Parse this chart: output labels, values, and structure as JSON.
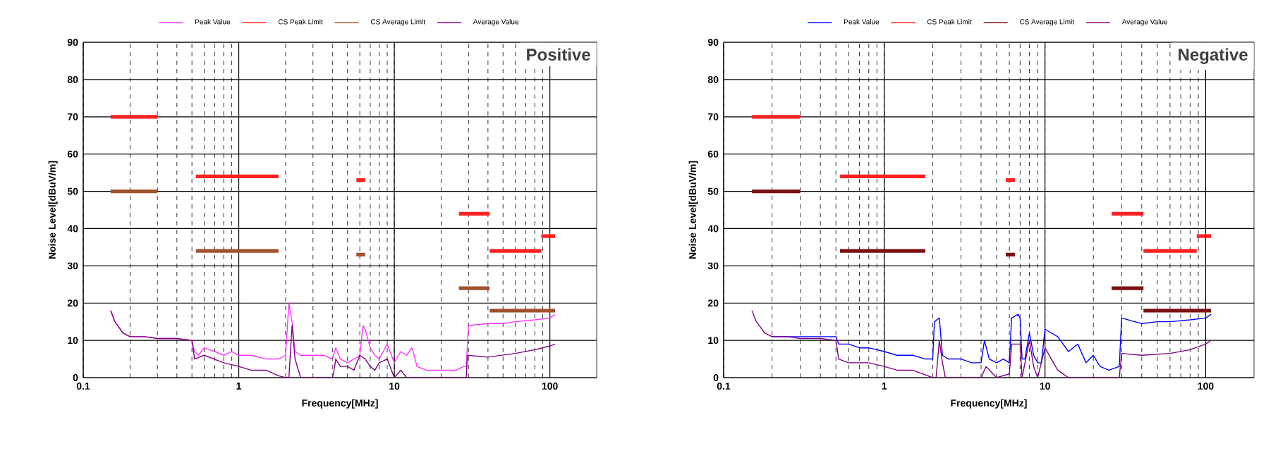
{
  "chart_data": [
    {
      "type": "line",
      "xlabel": "Frequency[MHz]",
      "ylabel": "Noise Level[dBuV/m]",
      "annotations": [
        "Positive"
      ],
      "log": "x",
      "grid": true,
      "legend": "top",
      "xlim": [
        0.1,
        200
      ],
      "ylim": [
        0,
        90
      ],
      "xticks": [
        0.1,
        1,
        10,
        100
      ],
      "yticks": [
        0,
        10,
        20,
        30,
        40,
        50,
        60,
        70,
        80,
        90
      ],
      "series": [
        {
          "name": "Peak Value",
          "color": "#ff33ff",
          "x": [
            0.15,
            0.16,
            0.18,
            0.2,
            0.25,
            0.3,
            0.4,
            0.5,
            0.52,
            0.55,
            0.6,
            0.7,
            0.8,
            0.9,
            1,
            1.2,
            1.5,
            1.8,
            2,
            2.1,
            2.2,
            2.3,
            2.5,
            3,
            3.5,
            4,
            4.2,
            4.5,
            5,
            5.5,
            6,
            6.3,
            6.5,
            7,
            7.5,
            8,
            9,
            10,
            11,
            12,
            13,
            14,
            16,
            20,
            25,
            28,
            29,
            30,
            40,
            50,
            60,
            80,
            100,
            108
          ],
          "values": [
            18,
            15,
            12,
            11,
            11,
            10.5,
            10.5,
            10,
            7,
            6,
            8,
            7,
            6,
            7,
            6,
            6,
            5,
            5,
            6,
            20,
            15,
            7,
            6,
            6,
            6,
            5,
            8,
            5,
            4,
            5,
            6,
            14,
            13,
            8,
            6,
            5,
            9,
            4,
            7,
            6,
            8,
            3,
            2,
            2,
            2,
            3,
            3,
            14,
            14.5,
            14.5,
            15,
            15.5,
            16,
            17
          ]
        },
        {
          "name": "CS Peak Limit",
          "color": "#ff2020",
          "x": [
            0.15,
            0.3,
            null,
            0.53,
            1.8,
            null,
            5.7,
            6.5,
            null,
            26,
            41,
            null,
            41,
            88,
            null,
            88,
            108
          ],
          "values": [
            70,
            70,
            null,
            54,
            54,
            null,
            53,
            53,
            null,
            44,
            44,
            null,
            34,
            34,
            null,
            38,
            38
          ]
        },
        {
          "name": "CS Average Limit",
          "color": "#a0522d",
          "x": [
            0.15,
            0.3,
            null,
            0.53,
            1.8,
            null,
            5.7,
            6.5,
            null,
            26,
            41,
            null,
            41,
            108
          ],
          "values": [
            50,
            50,
            null,
            34,
            34,
            null,
            33,
            33,
            null,
            24,
            24,
            null,
            18,
            18
          ]
        },
        {
          "name": "Average Value",
          "color": "#800080",
          "x": [
            0.15,
            0.16,
            0.18,
            0.2,
            0.25,
            0.3,
            0.4,
            0.5,
            0.52,
            0.6,
            0.8,
            1,
            1.2,
            1.5,
            1.8,
            2,
            2.1,
            2.2,
            2.3,
            2.5,
            3,
            4,
            4.1,
            4.2,
            4.5,
            5,
            5.5,
            6,
            6.5,
            7,
            7.5,
            8,
            9,
            10,
            11,
            12,
            14,
            20,
            29,
            29.5,
            40,
            60,
            80,
            100,
            108
          ],
          "values": [
            18,
            15,
            12,
            11,
            11,
            10.5,
            10.5,
            10,
            5,
            6,
            4,
            3,
            2,
            2,
            0.5,
            0,
            0,
            14,
            5,
            0,
            0,
            0,
            2,
            5,
            3,
            3,
            2,
            6,
            5,
            3,
            2,
            4,
            5,
            0,
            2,
            0,
            0,
            0,
            0,
            6,
            5.5,
            6.5,
            7.5,
            8.5,
            9
          ]
        }
      ]
    },
    {
      "type": "line",
      "xlabel": "Frequency[MHz]",
      "ylabel": "Noise Level[dBuV/m]",
      "annotations": [
        "Negative"
      ],
      "log": "x",
      "grid": true,
      "legend": "top",
      "xlim": [
        0.1,
        200
      ],
      "ylim": [
        0,
        90
      ],
      "xticks": [
        0.1,
        1,
        10,
        100
      ],
      "yticks": [
        0,
        10,
        20,
        30,
        40,
        50,
        60,
        70,
        80,
        90
      ],
      "series": [
        {
          "name": "Peak Value",
          "color": "#0000ff",
          "x": [
            0.2,
            0.25,
            0.3,
            0.4,
            0.5,
            0.52,
            0.6,
            0.7,
            0.8,
            1,
            1.2,
            1.5,
            1.8,
            2,
            2.05,
            2.2,
            2.3,
            2.5,
            3,
            3.5,
            4,
            4.2,
            4.5,
            5,
            5.5,
            6,
            6.2,
            6.8,
            7,
            7.2,
            7.5,
            8,
            8.5,
            9,
            9.5,
            10,
            12,
            14,
            16,
            18,
            20,
            22,
            25,
            29,
            30,
            40,
            50,
            60,
            80,
            100,
            108
          ],
          "values": [
            11,
            11,
            11,
            11,
            11,
            9,
            9,
            8,
            8,
            7,
            6,
            6,
            5,
            5,
            15,
            16,
            6,
            5,
            5,
            4,
            4,
            10,
            5,
            4,
            5,
            4,
            16,
            17,
            16,
            5,
            5,
            12,
            6,
            4,
            4,
            13,
            11,
            7,
            9,
            4,
            6,
            3,
            2,
            3,
            16,
            14.5,
            15,
            15,
            15.5,
            16,
            17
          ]
        },
        {
          "name": "CS Peak Limit",
          "color": "#ff2020",
          "x": [
            0.15,
            0.3,
            null,
            0.53,
            1.8,
            null,
            5.7,
            6.5,
            null,
            26,
            41,
            null,
            41,
            88,
            null,
            88,
            108
          ],
          "values": [
            70,
            70,
            null,
            54,
            54,
            null,
            53,
            53,
            null,
            44,
            44,
            null,
            34,
            34,
            null,
            38,
            38
          ]
        },
        {
          "name": "CS Average Limit",
          "color": "#7a1010",
          "x": [
            0.15,
            0.3,
            null,
            0.53,
            1.8,
            null,
            5.7,
            6.5,
            null,
            26,
            41,
            null,
            41,
            108
          ],
          "values": [
            50,
            50,
            null,
            34,
            34,
            null,
            33,
            33,
            null,
            24,
            24,
            null,
            18,
            18
          ]
        },
        {
          "name": "Average Value",
          "color": "#800080",
          "x": [
            0.15,
            0.16,
            0.18,
            0.2,
            0.25,
            0.3,
            0.4,
            0.5,
            0.52,
            0.6,
            0.8,
            1,
            1.2,
            1.5,
            2,
            2.1,
            2.2,
            2.3,
            2.4,
            3,
            4,
            4.3,
            5,
            6,
            6.2,
            7,
            7.2,
            8,
            8.5,
            9,
            10,
            12,
            14,
            20,
            29,
            30,
            40,
            60,
            80,
            100,
            108
          ],
          "values": [
            18,
            15,
            12,
            11,
            11,
            10.5,
            10.5,
            10,
            5,
            4,
            4,
            3,
            2,
            2,
            0,
            0,
            10,
            4,
            0,
            0,
            0,
            3,
            0,
            1,
            9,
            9,
            0,
            10,
            3,
            0,
            8,
            2,
            0,
            0,
            0,
            6.5,
            6,
            6.5,
            7.5,
            9,
            10
          ]
        }
      ]
    }
  ]
}
